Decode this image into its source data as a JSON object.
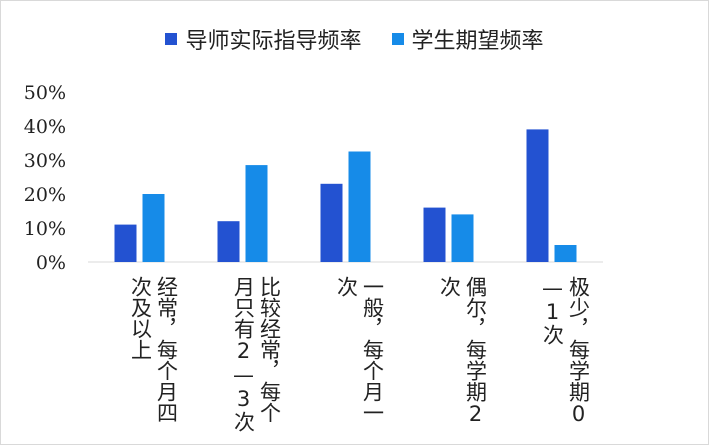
{
  "chart_data": {
    "type": "bar",
    "categories": [
      "经常，每个月四次及以上",
      "比较经常，每个月只有2—3次",
      "一般，每个月一次",
      "偶尔，每学期2次",
      "极少，每学期0—1次"
    ],
    "series": [
      {
        "name": "导师实际指导频率",
        "color": "#2352d1",
        "values": [
          11,
          12,
          23,
          16,
          39
        ]
      },
      {
        "name": "学生期望频率",
        "color": "#168be8",
        "values": [
          20,
          28.5,
          32.5,
          14,
          5
        ]
      }
    ],
    "yticks": [
      "0%",
      "10%",
      "20%",
      "30%",
      "40%",
      "50%"
    ],
    "ylim": [
      0,
      50
    ],
    "grid": false,
    "legend_position": "top"
  }
}
